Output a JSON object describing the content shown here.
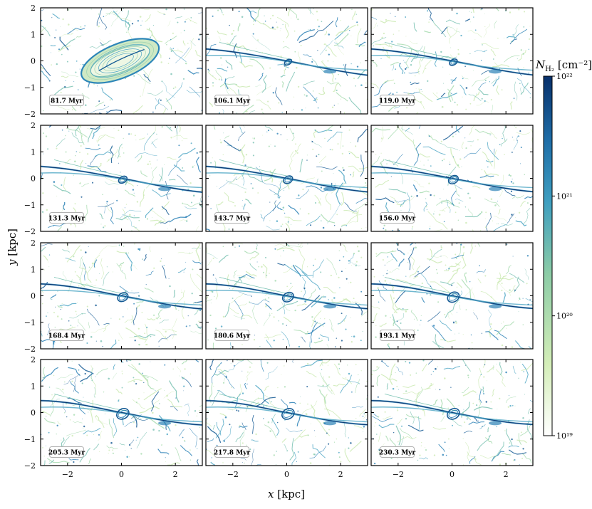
{
  "chart_data": {
    "type": "heatmap",
    "grid": {
      "rows": 4,
      "cols": 3
    },
    "panel_labels": [
      "81.7 Myr",
      "106.1 Myr",
      "119.0 Myr",
      "131.3 Myr",
      "143.7 Myr",
      "156.0 Myr",
      "168.4 Myr",
      "180.6 Myr",
      "193.1 Myr",
      "205.3 Myr",
      "217.8 Myr",
      "230.3 Myr"
    ],
    "xlabel": "x",
    "xlabel_unit": "[kpc]",
    "ylabel": "y",
    "ylabel_unit": "[kpc]",
    "xlim": [
      -3,
      3
    ],
    "ylim": [
      -2,
      2
    ],
    "x_ticks": [
      -2,
      0,
      2
    ],
    "x_tick_labels": [
      "−2",
      "0",
      "2"
    ],
    "y_ticks": [
      -2,
      -1,
      0,
      1,
      2
    ],
    "y_tick_labels": [
      "−2",
      "−1",
      "0",
      "1",
      "2"
    ],
    "colorbar": {
      "label": "N",
      "label_sub": "H₂",
      "label_unit": "[cm⁻²]",
      "scale": "log",
      "range": [
        1e+19,
        1e+22
      ],
      "ticks": [
        19,
        20,
        21,
        22
      ],
      "tick_labels": [
        "10¹⁹",
        "10²⁰",
        "10²¹",
        "10²²"
      ],
      "colors": [
        "#ffffff",
        "#d4eeb8",
        "#8ccca6",
        "#3f9fc0",
        "#1f6ea8",
        "#08306b"
      ]
    }
  }
}
